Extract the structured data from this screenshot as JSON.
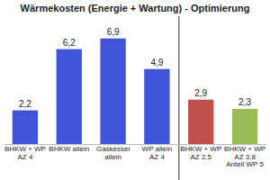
{
  "chart_data": {
    "type": "bar",
    "title": "Wärmekosten (Energie + Wartung) - Optimierung",
    "categories": [
      "BHKW + WP\nAZ 4",
      "BHKW allein",
      "Gaskessel\nallein",
      "WP allein\nAZ 4",
      "BHKW + WP\nAZ 2,5",
      "BHKW + WP\nAZ 3,8\nAnteil WP 5"
    ],
    "values": [
      2.2,
      6.2,
      6.9,
      4.9,
      2.9,
      2.3
    ],
    "value_labels": [
      "2,2",
      "6,2",
      "6,9",
      "4,9",
      "2,9",
      "2,3"
    ],
    "colors": [
      "#4153d9",
      "#4153d9",
      "#4153d9",
      "#4153d9",
      "#c0504d",
      "#9bbb59"
    ],
    "ylim": [
      0,
      8
    ],
    "data_labels": true,
    "tick_labels": false
  }
}
